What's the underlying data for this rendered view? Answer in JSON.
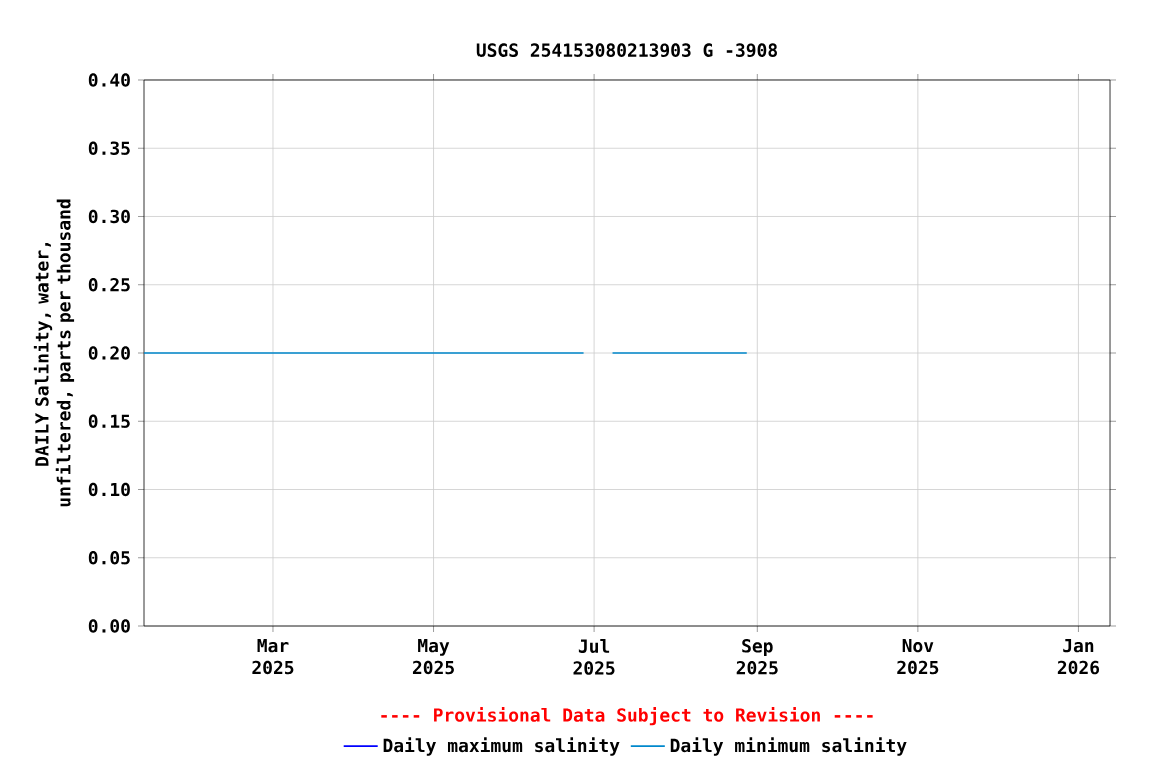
{
  "chart_data": {
    "type": "line",
    "title": "USGS 254153080213903 G  -3908",
    "ylabel": "DAILY Salinity, water, unfiltered, parts per thousand",
    "xlim": [
      "2025-01-11",
      "2026-01-13"
    ],
    "xticks": [
      {
        "value": "2025-03-01",
        "label": "Mar 2025"
      },
      {
        "value": "2025-05-01",
        "label": "May 2025"
      },
      {
        "value": "2025-07-01",
        "label": "Jul 2025"
      },
      {
        "value": "2025-09-01",
        "label": "Sep 2025"
      },
      {
        "value": "2025-11-01",
        "label": "Nov 2025"
      },
      {
        "value": "2026-01-01",
        "label": "Jan 2026"
      }
    ],
    "ylim": [
      0,
      0.4
    ],
    "yticks": [
      {
        "value": 0,
        "label": "0.00"
      },
      {
        "value": 0.05,
        "label": "0.05"
      },
      {
        "value": 0.1,
        "label": "0.10"
      },
      {
        "value": 0.15,
        "label": "0.15"
      },
      {
        "value": 0.2,
        "label": "0.20"
      },
      {
        "value": 0.25,
        "label": "0.25"
      },
      {
        "value": 0.3,
        "label": "0.30"
      },
      {
        "value": 0.35,
        "label": "0.35"
      },
      {
        "value": 0.4,
        "label": "0.40"
      }
    ],
    "grid": true,
    "legend": "bottom",
    "annotations": [
      "---- Provisional Data Subject to Revision ----"
    ],
    "series": [
      {
        "name": "Daily maximum salinity",
        "color": "#0000ff"
      },
      {
        "name": "Daily minimum salinity",
        "color": "#0088cc",
        "x": [
          "2025-01-11",
          "2025-06-27",
          "2025-06-28",
          "2025-07-08",
          "2025-08-28"
        ],
        "values": [
          0.2,
          0.2,
          null,
          0.2,
          0.2
        ]
      }
    ]
  }
}
